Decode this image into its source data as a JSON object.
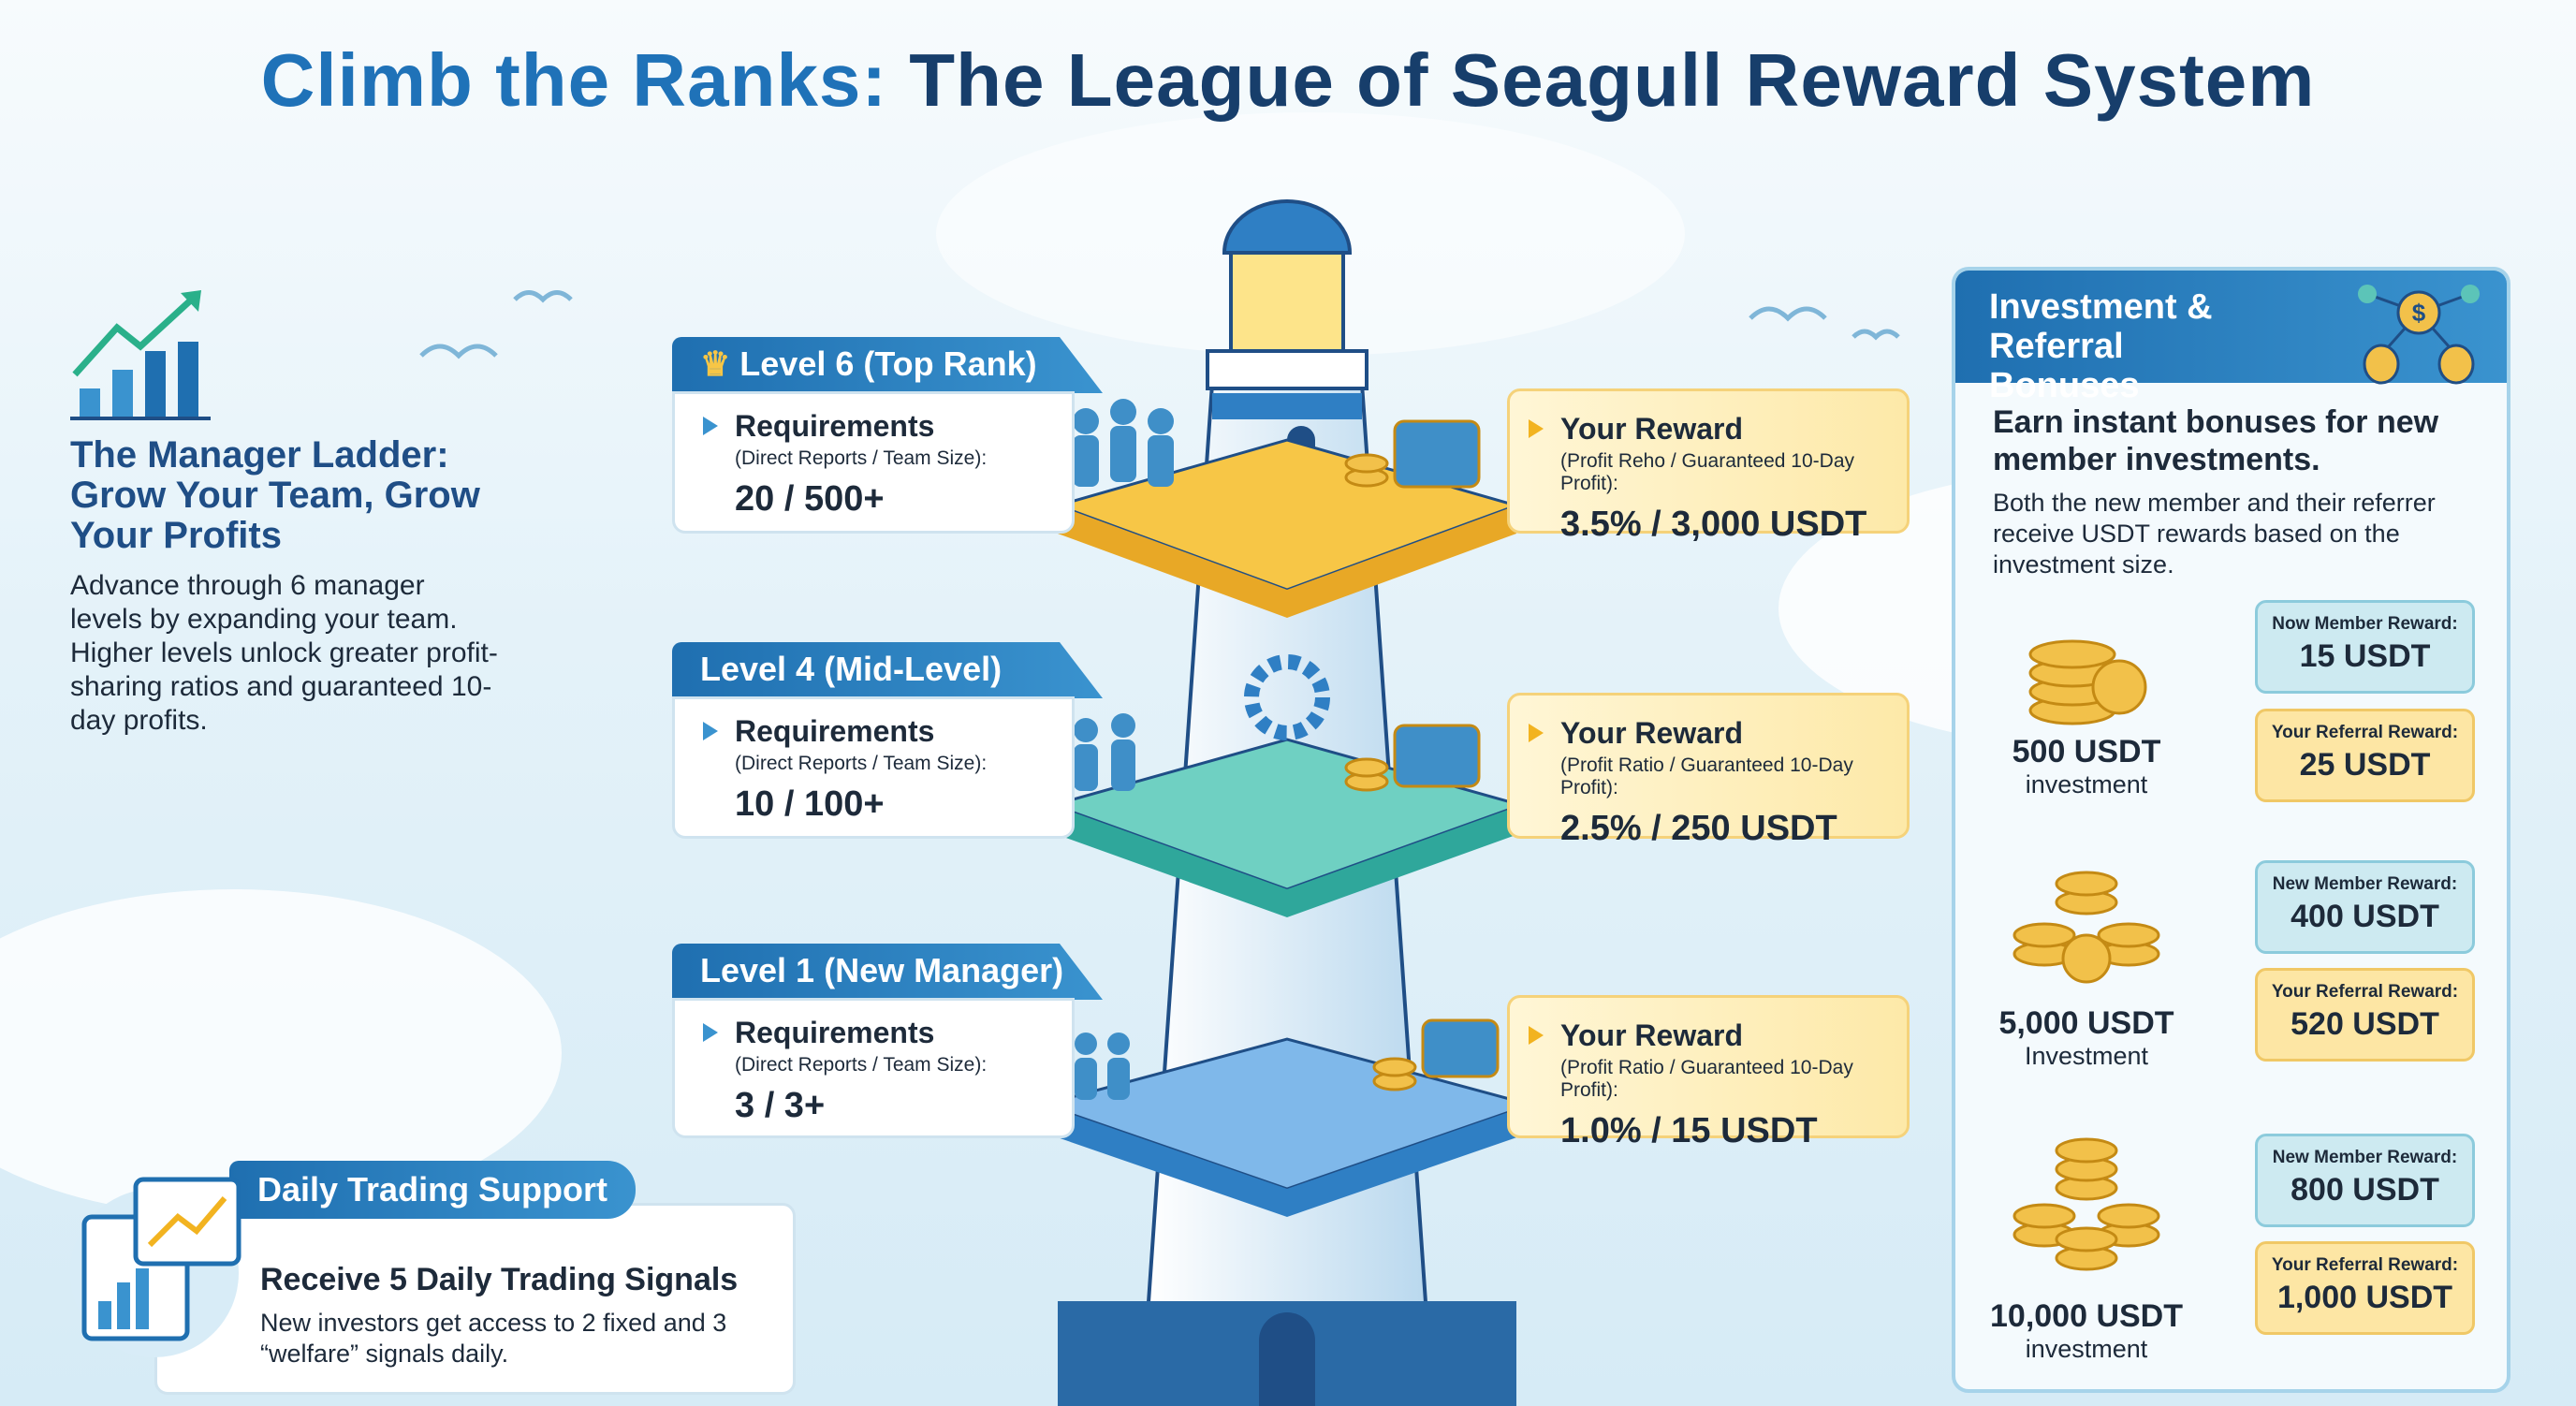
{
  "title": {
    "highlight": "Climb the Ranks:",
    "rest": " The League of Seagull Reward System"
  },
  "ladder": {
    "icon": "growth-chart-icon",
    "heading": "The Manager Ladder: Grow Your Team, Grow Your Profits",
    "text": "Advance through 6 manager levels by expanding your team. Higher levels unlock greater profit-sharing ratios and guaranteed 10-day profits."
  },
  "levels": [
    {
      "tab": "Level 6 (Top Rank)",
      "icon": "crown-icon",
      "req_label": "Requirements",
      "req_sub": "(Direct Reports / Team Size):",
      "req_value": "20 / 500+",
      "rew_label": "Your Reward",
      "rew_sub": "(Profit Reho / Guaranteed 10-Day Profit):",
      "rew_value": "3.5% / 3,000 USDT",
      "platform_color": "#f7c646"
    },
    {
      "tab": "Level 4 (Mid-Level)",
      "req_label": "Requirements",
      "req_sub": "(Direct Reports / Team Size):",
      "req_value": "10 / 100+",
      "rew_label": "Your Reward",
      "rew_sub": "(Profit Ratio / Guaranteed 10-Day Profit):",
      "rew_value": "2.5% / 250 USDT",
      "platform_color": "#5cc4b8"
    },
    {
      "tab": "Level 1 (New Manager)",
      "req_label": "Requirements",
      "req_sub": "(Direct Reports / Team Size):",
      "req_value": "3 / 3+",
      "rew_label": "Your Reward",
      "rew_sub": "(Profit Ratio / Guaranteed 10-Day Profit):",
      "rew_value": "1.0% / 15 USDT",
      "platform_color": "#4f9ae0"
    }
  ],
  "bonus": {
    "header": "Investment & Referral Bonuses",
    "icon": "money-network-icon",
    "heading": "Earn instant bonuses for new member investments.",
    "text": "Both the new member and their referrer receive USDT rewards based on the investment size.",
    "tiers": [
      {
        "amount": "500 USDT",
        "label": "investment",
        "nm_label": "Now Member Reward:",
        "nm_value": "15 USDT",
        "rr_label": "Your Referral Reward:",
        "rr_value": "25 USDT"
      },
      {
        "amount": "5,000 USDT",
        "label": "Investment",
        "nm_label": "New Member Reward:",
        "nm_value": "400 USDT",
        "rr_label": "Your Referral Reward:",
        "rr_value": "520 USDT"
      },
      {
        "amount": "10,000 USDT",
        "label": "investment",
        "nm_label": "New Member Reward:",
        "nm_value": "800 USDT",
        "rr_label": "Your Referral Reward:",
        "rr_value": "1,000 USDT"
      }
    ]
  },
  "daily": {
    "tab": "Daily Trading Support",
    "heading": "Receive 5 Daily Trading Signals",
    "text": "New investors get access to 2 fixed and 3 “welfare” signals daily.",
    "icon": "trading-dashboard-icon"
  },
  "colors": {
    "primary": "#1f6fb0",
    "navy": "#173e6b",
    "gold": "#f2b320",
    "teal": "#5cc4b8"
  }
}
